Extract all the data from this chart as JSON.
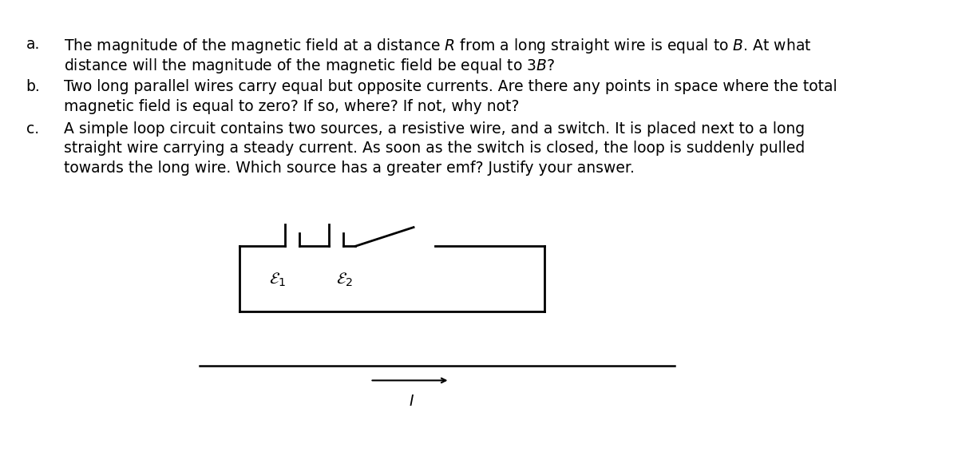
{
  "background_color": "#ffffff",
  "text_color": "#000000",
  "font_size_label": 13.5,
  "questions": [
    {
      "label": "a.",
      "line1": "The magnitude of the magnetic field at a distance $R$ from a long straight wire is equal to $B$. At what",
      "line2": "distance will the magnitude of the magnetic field be equal to $3B$?"
    },
    {
      "label": "b.",
      "line1": "Two long parallel wires carry equal but opposite currents. Are there any points in space where the total",
      "line2": "magnetic field is equal to zero? If so, where? If not, why not?"
    },
    {
      "label": "c.",
      "line1": "A simple loop circuit contains two sources, a resistive wire, and a switch. It is placed next to a long",
      "line2": "straight wire carrying a steady current. As soon as the switch is closed, the loop is suddenly pulled",
      "line3": "towards the long wire. Which source has a greater emf? Justify your answer."
    }
  ],
  "circuit": {
    "eps1_label": "$\\mathcal{E}_1$",
    "eps2_label": "$\\mathcal{E}_2$",
    "wire_label": "$I$"
  }
}
